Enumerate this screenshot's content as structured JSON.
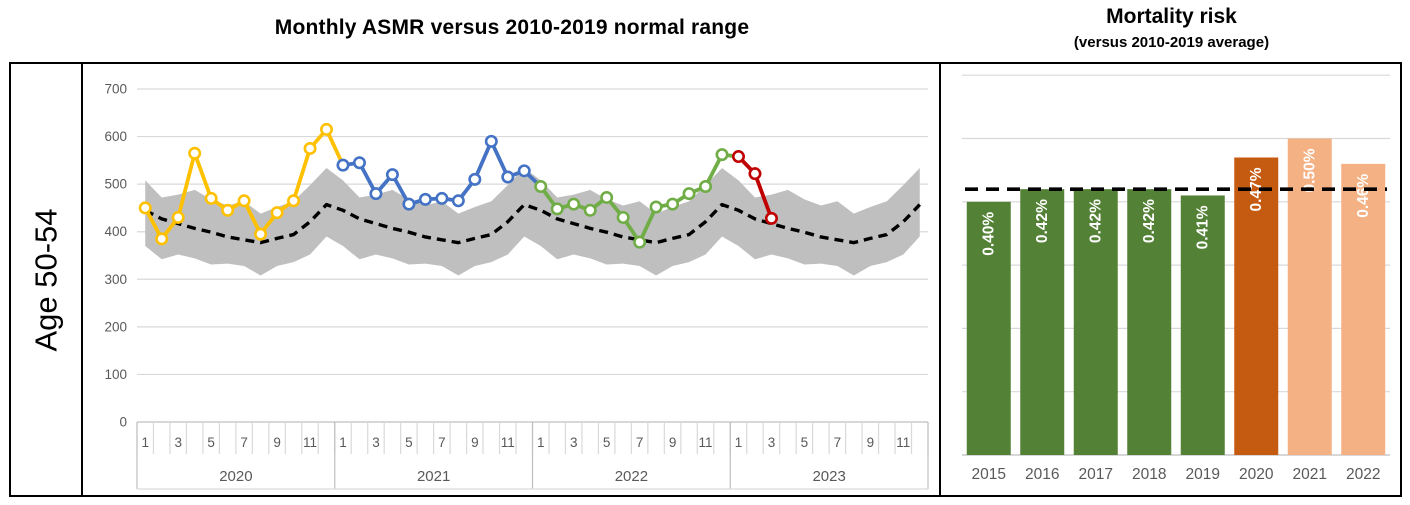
{
  "chart_data": [
    {
      "type": "line",
      "title": "Monthly ASMR versus 2010-2019 normal range",
      "row_label": "Age 50-54",
      "ylim": [
        0,
        700
      ],
      "y_ticks": [
        0,
        100,
        200,
        300,
        400,
        500,
        600,
        700
      ],
      "month_tick_labels": [
        "1",
        "3",
        "5",
        "7",
        "9",
        "11"
      ],
      "year_labels": [
        "2020",
        "2021",
        "2022",
        "2023"
      ],
      "months_per_year": 12,
      "grid": true,
      "legend": "none",
      "colors": {
        "normal_range_band": "#BFBFBF",
        "average_line": "#000000"
      },
      "normal_range": {
        "note": "2010-2019 normal range, same 12-month pattern repeated each year",
        "upper": [
          508,
          472,
          478,
          488,
          468,
          455,
          464,
          438,
          452,
          464,
          498,
          534
        ],
        "lower": [
          370,
          342,
          352,
          344,
          331,
          333,
          328,
          308,
          328,
          336,
          352,
          390
        ]
      },
      "average_2010_2019": [
        445,
        427,
        417,
        407,
        399,
        389,
        383,
        377,
        386,
        394,
        421,
        457
      ],
      "series": [
        {
          "name": "2020",
          "color": "#FFC000",
          "values": [
            450,
            385,
            430,
            565,
            470,
            445,
            465,
            395,
            440,
            465,
            575,
            615
          ]
        },
        {
          "name": "2021",
          "color": "#4472C4",
          "values": [
            540,
            545,
            480,
            520,
            458,
            468,
            470,
            465,
            510,
            590,
            515,
            528
          ]
        },
        {
          "name": "2022",
          "color": "#70AD47",
          "values": [
            495,
            448,
            458,
            445,
            472,
            430,
            378,
            452,
            458,
            480,
            495,
            562
          ]
        },
        {
          "name": "2023",
          "color": "#C00000",
          "values": [
            558,
            522,
            428
          ]
        }
      ]
    },
    {
      "type": "bar",
      "title": "Mortality risk",
      "subtitle": "(versus 2010-2019 average)",
      "categories": [
        "2015",
        "2016",
        "2017",
        "2018",
        "2019",
        "2020",
        "2021",
        "2022"
      ],
      "values": [
        0.4,
        0.42,
        0.42,
        0.42,
        0.41,
        0.47,
        0.5,
        0.46
      ],
      "labels": [
        "0.40%",
        "0.42%",
        "0.42%",
        "0.42%",
        "0.41%",
        "0.47%",
        "0.50%",
        "0.46%"
      ],
      "bar_colors": [
        "#538135",
        "#538135",
        "#538135",
        "#538135",
        "#538135",
        "#C55A11",
        "#F4B183",
        "#F4B183"
      ],
      "label_color": "#FFFFFF",
      "baseline_value": 0.42,
      "baseline_note": "2010-2019 average (dashed line)",
      "ylim": [
        0,
        0.62
      ],
      "gridline_step": 0.1,
      "grid": true,
      "legend": "none"
    }
  ]
}
